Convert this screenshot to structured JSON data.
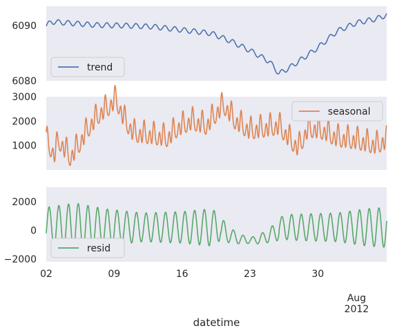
{
  "chart_data": [
    {
      "type": "line",
      "series": [
        {
          "name": "trend",
          "color": "#4c72b0"
        }
      ],
      "yticks": [
        6080,
        6090
      ],
      "ylim": [
        6080,
        6093.5
      ],
      "legend": "lower-left",
      "grid": false,
      "approx_trend": [
        [
          0,
          6089.9
        ],
        [
          0.5,
          6090.7
        ],
        [
          2,
          6090.5
        ],
        [
          3.5,
          6090.3
        ],
        [
          5,
          6090.1
        ],
        [
          8,
          6090.0
        ],
        [
          11,
          6089.8
        ],
        [
          14,
          6089.2
        ],
        [
          17,
          6088.6
        ],
        [
          19,
          6087.2
        ],
        [
          21,
          6085.5
        ],
        [
          23,
          6083.5
        ],
        [
          24,
          6081.3
        ],
        [
          25,
          6082.3
        ],
        [
          26,
          6083.5
        ],
        [
          28,
          6086.0
        ],
        [
          30,
          6089.0
        ],
        [
          32,
          6090.5
        ],
        [
          34,
          6091.2
        ],
        [
          36,
          6092.5
        ],
        [
          37.5,
          6093.2
        ]
      ]
    },
    {
      "type": "line",
      "series": [
        {
          "name": "seasonal",
          "color": "#dd8452"
        }
      ],
      "yticks": [
        1000,
        2000,
        3000
      ],
      "ylim": [
        0,
        3000
      ],
      "legend": "upper-right",
      "grid": false,
      "approx_seasonal": [
        [
          0,
          1250
        ],
        [
          0.8,
          600
        ],
        [
          1.3,
          1200
        ],
        [
          2.5,
          500
        ],
        [
          3.3,
          1000
        ],
        [
          4.5,
          1800
        ],
        [
          5.5,
          2300
        ],
        [
          6.5,
          2600
        ],
        [
          7.2,
          2900
        ],
        [
          8.0,
          2100
        ],
        [
          9.0,
          1500
        ],
        [
          11,
          1400
        ],
        [
          12.5,
          1300
        ],
        [
          13.5,
          1700
        ],
        [
          15,
          2000
        ],
        [
          16.5,
          1800
        ],
        [
          17.7,
          2400
        ],
        [
          18.3,
          2650
        ],
        [
          19.5,
          2000
        ],
        [
          21,
          1600
        ],
        [
          22.5,
          1700
        ],
        [
          24,
          1800
        ],
        [
          25.2,
          1200
        ],
        [
          26,
          900
        ],
        [
          27,
          1700
        ],
        [
          28.5,
          1600
        ],
        [
          30,
          1300
        ],
        [
          32,
          1200
        ],
        [
          34,
          1000
        ],
        [
          35.5,
          1300
        ],
        [
          37.5,
          1350
        ]
      ]
    },
    {
      "type": "line",
      "series": [
        {
          "name": "resid",
          "color": "#55a868"
        }
      ],
      "yticks": [
        -2000,
        0,
        2000
      ],
      "ylim": [
        -2200,
        3000
      ],
      "legend": "lower-left",
      "grid": false,
      "xlabel": "datetime",
      "xticks": [
        {
          "label": "02",
          "day": 0
        },
        {
          "label": "09",
          "day": 7
        },
        {
          "label": "16",
          "day": 14
        },
        {
          "label": "23",
          "day": 21
        },
        {
          "label": "30",
          "day": 28
        }
      ],
      "xtick_month": {
        "label": "Aug",
        "year": "2012",
        "day": 30
      },
      "xlim_days": [
        0,
        35.1
      ],
      "approx_resid_amplitude": [
        [
          0,
          1400
        ],
        [
          3,
          1700
        ],
        [
          6,
          1300
        ],
        [
          10,
          1000
        ],
        [
          14,
          1100
        ],
        [
          17,
          1300
        ],
        [
          19,
          500
        ],
        [
          21,
          200
        ],
        [
          22.5,
          400
        ],
        [
          25,
          900
        ],
        [
          30,
          1000
        ],
        [
          33,
          1300
        ],
        [
          35.1,
          1400
        ]
      ]
    }
  ]
}
